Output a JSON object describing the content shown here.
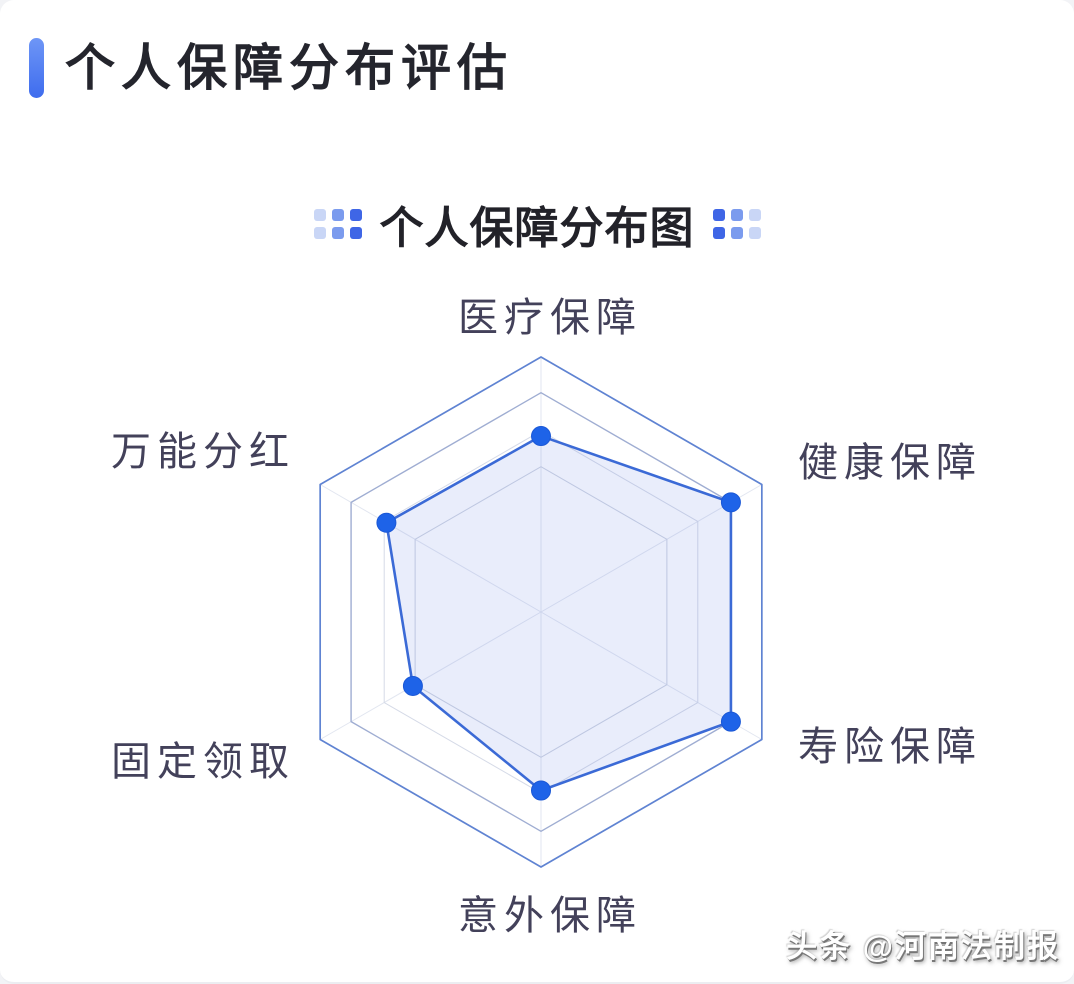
{
  "header": {
    "title": "个人保障分布评估",
    "accent_color": "#4d7bf3"
  },
  "chart": {
    "decoration_colors": [
      "#c9d6f6",
      "#7b9bee",
      "#3f66e6"
    ]
  },
  "chart_data": {
    "type": "radar",
    "title": "个人保障分布图",
    "shape": "hexagon",
    "indicators": [
      "医疗保障",
      "健康保障",
      "寿险保障",
      "意外保障",
      "固定领取",
      "万能分红"
    ],
    "values": [
      69,
      86,
      86,
      70,
      58,
      70
    ],
    "max": 100,
    "grid_levels": [
      {
        "level": 100,
        "color": "#5f83d2",
        "width": 1.7
      },
      {
        "level": 86,
        "color": "#9fadd2",
        "width": 1.4
      },
      {
        "level": 71,
        "color": "#d5dae7",
        "width": 1.0
      },
      {
        "level": 57,
        "color": "#cdd3e1",
        "width": 1.0
      }
    ],
    "legend": null,
    "grid": "hexagonal, spokes from center, no tick numbers shown",
    "style": {
      "axis_label_color": "#43415a",
      "spoke_color": "#e2e6f0",
      "series_line_color": "#3b6ad6",
      "series_fill_color": "rgba(96,130,228,0.14)",
      "point_color": "#1e63e8",
      "point_stroke": "#1b58d6"
    }
  },
  "watermark": {
    "text": "头条 @河南法制报"
  }
}
